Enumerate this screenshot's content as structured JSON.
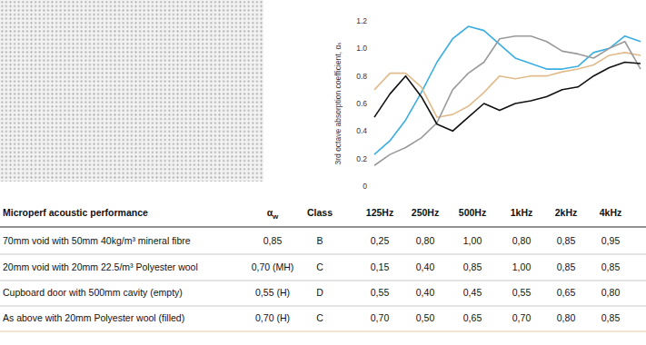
{
  "chart_data": {
    "type": "line",
    "y_label": "3rd octave absorption coefficient, αₛ",
    "categories": [
      null,
      null,
      null,
      null,
      null,
      null,
      null,
      null,
      null,
      null,
      null,
      null,
      null,
      null,
      null,
      null,
      null,
      null
    ],
    "series": [
      {
        "color": "#3aaee0",
        "values": [
          0.23,
          0.33,
          0.48,
          0.68,
          0.9,
          1.07,
          1.16,
          1.13,
          1.03,
          0.93,
          0.89,
          0.85,
          0.85,
          0.87,
          0.97,
          1.0,
          1.09,
          1.05
        ]
      },
      {
        "color": "#e2bb8c",
        "values": [
          0.7,
          0.82,
          0.82,
          0.72,
          0.5,
          0.52,
          0.58,
          0.68,
          0.8,
          0.78,
          0.8,
          0.8,
          0.83,
          0.85,
          0.88,
          0.95,
          0.97,
          0.95
        ]
      },
      {
        "color": "#9a9a9a",
        "values": [
          0.15,
          0.23,
          0.28,
          0.35,
          0.46,
          0.7,
          0.82,
          0.9,
          1.07,
          1.09,
          1.09,
          1.05,
          0.98,
          0.96,
          0.93,
          1.0,
          1.05,
          0.85
        ]
      },
      {
        "color": "#111111",
        "values": [
          0.5,
          0.67,
          0.8,
          0.65,
          0.45,
          0.4,
          0.5,
          0.6,
          0.55,
          0.6,
          0.62,
          0.65,
          0.7,
          0.72,
          0.8,
          0.86,
          0.9,
          0.89
        ]
      }
    ],
    "ylim": [
      0,
      1.2
    ],
    "yticks": [
      0,
      0.2,
      0.4,
      0.6,
      0.8,
      {
        "value": 1,
        "label": "1.0"
      },
      1.2
    ],
    "grid": false,
    "tick_labels": "y"
  },
  "table": {
    "header": [
      "Microperf acoustic performance",
      {
        "base": "α",
        "sub": "w"
      },
      "Class",
      "125Hz",
      "250Hz",
      "500Hz",
      "1kHz",
      "2kHz",
      "4kHz"
    ],
    "rows": [
      [
        "70mm void with 50mm 40kg/m³ mineral fibre",
        "0,85",
        "B",
        "0,25",
        "0,80",
        "1,00",
        "0,80",
        "0,85",
        "0,95"
      ],
      [
        "20mm void with 20mm 22.5/m³  Polyester wool",
        "0,70 (MH)",
        "C",
        "0,15",
        "0,40",
        "0,85",
        "1,00",
        "0,85",
        "0,85"
      ],
      [
        "Cupboard door with 500mm cavity (empty)",
        "0,55 (H)",
        "D",
        "0,55",
        "0,40",
        "0,45",
        "0,55",
        "0,65",
        "0,80"
      ],
      [
        "As above with 20mm Polyester wool (filled)",
        "0,70 (H)",
        "C",
        "0,70",
        "0,50",
        "0,65",
        "0,70",
        "0,80",
        "0,85"
      ]
    ]
  }
}
